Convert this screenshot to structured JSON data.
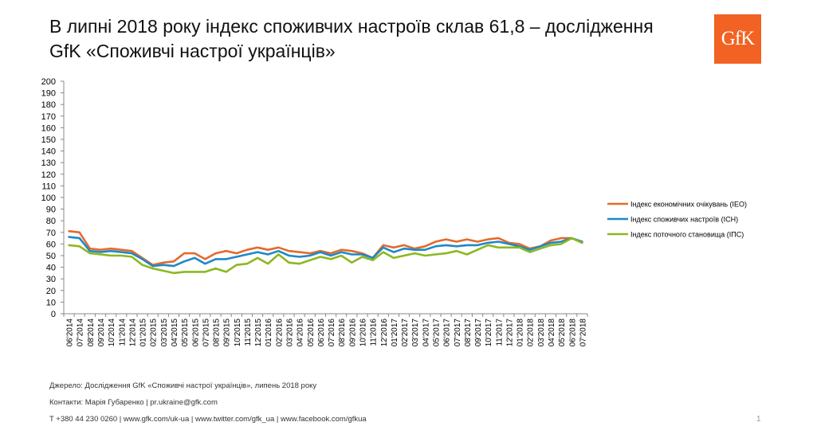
{
  "slide": {
    "title": "В липні 2018 року індекс споживчих настроїв склав 61,8 – дослідження GfK «Споживчі настрої українців»",
    "logo_text": "GfK",
    "source": "Джерело: Дослідження GfK «Споживчі настрої українців», липень 2018 року",
    "contacts": "Контакти: Марія Губаренко | pr.ukraine@gfk.com",
    "links": "T +380 44 230 0260 | www.gfk.com/uk-ua | www.twitter.com/gfk_ua | www.facebook.com/gfkua",
    "page_number": "1"
  },
  "colors": {
    "brand": "#f26222"
  },
  "chart_data": {
    "type": "line",
    "ylim": [
      0,
      200
    ],
    "ytick_step": 10,
    "grid": false,
    "legend_position": "right",
    "categories": [
      "06'2014",
      "07'2014",
      "08'2014",
      "09'2014",
      "10'2014",
      "11'2014",
      "12'2014",
      "01'2015",
      "02'2015",
      "03'2015",
      "04'2015",
      "05'2015",
      "06'2015",
      "07'2015",
      "08'2015",
      "09'2015",
      "10'2015",
      "11'2015",
      "12'2015",
      "01'2016",
      "02'2016",
      "03'2016",
      "04'2016",
      "05'2016",
      "06'2016",
      "07'2016",
      "08'2016",
      "09'2016",
      "10'2016",
      "11'2016",
      "12'2016",
      "01'2017",
      "02'2017",
      "03'2017",
      "04'2017",
      "05'2017",
      "06'2017",
      "07'2017",
      "08'2017",
      "09'2017",
      "10'2017",
      "11'2017",
      "12'2017",
      "01'2018",
      "02'2018",
      "03'2018",
      "04'2018",
      "05'2018",
      "06'2018",
      "07'2018"
    ],
    "series": [
      {
        "name": "Індекс економічних очікувань (ІЕО)",
        "color": "#e36b2c",
        "values": [
          71,
          70,
          56,
          55,
          56,
          55,
          54,
          48,
          42,
          44,
          45,
          52,
          52,
          47,
          52,
          54,
          52,
          55,
          57,
          55,
          57,
          54,
          53,
          52,
          54,
          52,
          55,
          54,
          52,
          48,
          59,
          57,
          59,
          56,
          58,
          62,
          64,
          62,
          64,
          62,
          64,
          65,
          61,
          60,
          56,
          58,
          63,
          65,
          65,
          61
        ]
      },
      {
        "name": "Індекс споживчих настроїв (ІСН)",
        "color": "#1e88c8",
        "values": [
          66,
          65,
          54,
          53,
          54,
          53,
          52,
          47,
          41,
          42,
          41,
          45,
          48,
          43,
          47,
          47,
          49,
          51,
          53,
          51,
          54,
          50,
          49,
          50,
          53,
          50,
          53,
          51,
          51,
          48,
          57,
          53,
          56,
          55,
          55,
          58,
          59,
          58,
          59,
          59,
          61,
          62,
          60,
          58,
          55,
          58,
          61,
          62,
          65,
          62
        ]
      },
      {
        "name": "Індекс поточного становища (ІПС)",
        "color": "#8db71f",
        "values": [
          59,
          58,
          52,
          51,
          50,
          50,
          49,
          42,
          39,
          37,
          35,
          36,
          36,
          36,
          39,
          36,
          42,
          43,
          48,
          43,
          51,
          44,
          43,
          46,
          49,
          47,
          50,
          44,
          49,
          46,
          53,
          48,
          50,
          52,
          50,
          51,
          52,
          54,
          51,
          55,
          59,
          57,
          57,
          57,
          53,
          56,
          59,
          60,
          65,
          61
        ]
      }
    ]
  }
}
